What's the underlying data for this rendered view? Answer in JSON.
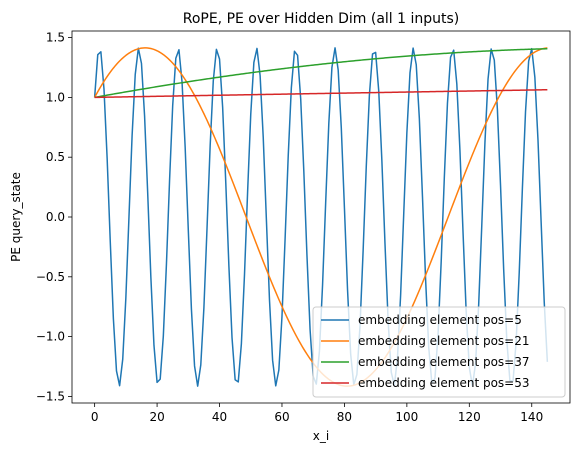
{
  "chart_data": {
    "type": "line",
    "title": "RoPE, PE over Hidden Dim (all 1 inputs)",
    "xlabel": "x_i",
    "ylabel": "PE query_state",
    "xlim": [
      -7.25,
      152.25
    ],
    "ylim": [
      -1.555,
      1.555
    ],
    "x_ticks": [
      0,
      20,
      40,
      60,
      80,
      100,
      120,
      140
    ],
    "y_ticks": [
      -1.5,
      -1.0,
      -0.5,
      0.0,
      0.5,
      1.0,
      1.5
    ],
    "y_tick_labels": [
      "−1.5",
      "−1.0",
      "−0.5",
      "0.0",
      "0.5",
      "1.0",
      "1.5"
    ],
    "x_range": [
      0,
      145
    ],
    "grid": false,
    "legend_position": "lower-right",
    "series": [
      {
        "name": "embedding element pos=5",
        "color": "#1f77b4",
        "amplitude": 1.414,
        "period": 12.5664,
        "phase": 0.7854
      },
      {
        "name": "embedding element pos=21",
        "color": "#ff7f0e",
        "amplitude": 1.414,
        "period": 129.4,
        "phase": 0.7854
      },
      {
        "name": "embedding element pos=37",
        "color": "#2ca02c",
        "amplitude": 1.414,
        "period": 1332,
        "phase": 0.7854
      },
      {
        "name": "embedding element pos=53",
        "color": "#d62728",
        "amplitude": 1.414,
        "period": 13720,
        "phase": 0.7854
      }
    ]
  }
}
